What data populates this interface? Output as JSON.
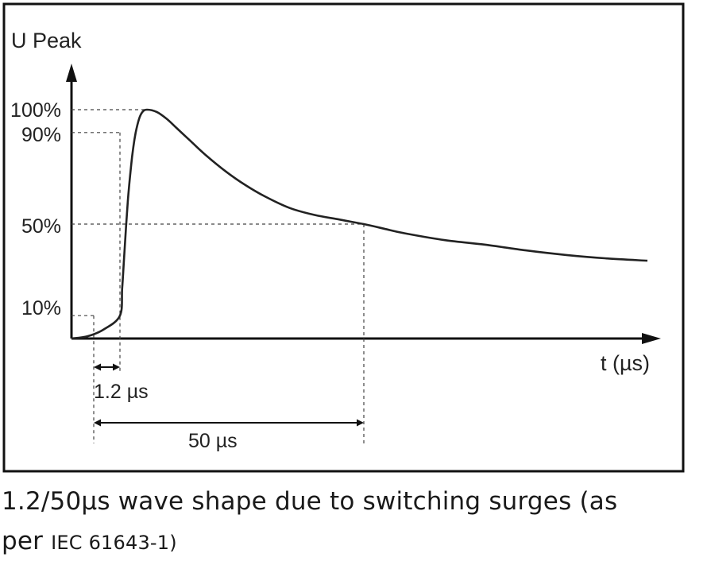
{
  "chart_data": {
    "type": "line",
    "title": "",
    "ylabel": "U Peak",
    "xlabel": "t (µs)",
    "y_ticks": [
      {
        "value": 100,
        "label": "100%"
      },
      {
        "value": 90,
        "label": "90%"
      },
      {
        "value": 50,
        "label": "50%"
      },
      {
        "value": 10,
        "label": "10%"
      }
    ],
    "series": [
      {
        "x": [
          0,
          0.4,
          0.8,
          1.2,
          1.6,
          2.0,
          2.6,
          3.2,
          3.6,
          4.0,
          4.6,
          5.2,
          6,
          8,
          10,
          12,
          15,
          18,
          22,
          26,
          30,
          35,
          40,
          45,
          50,
          55,
          60,
          70,
          80,
          90,
          100,
          110,
          120
        ],
        "values": [
          0,
          1,
          4,
          10,
          22,
          38,
          60,
          76,
          84,
          90,
          96,
          99,
          100,
          99,
          96,
          92,
          86,
          80,
          73,
          67,
          62,
          57,
          54,
          52,
          50,
          48,
          46,
          43,
          41,
          38.5,
          36.5,
          35,
          34
        ]
      }
    ],
    "annotations": {
      "front_time": {
        "from": 0,
        "to": 1.2,
        "label": "1.2 µs"
      },
      "tail_time": {
        "from": 0,
        "to": 50,
        "label": "50 µs"
      }
    },
    "xlim": [
      0,
      120
    ],
    "ylim": [
      0,
      100
    ]
  },
  "caption": {
    "line1": "1.2/50µs wave shape due to switching surges (as",
    "line2_prefix": "per ",
    "line2_small": "IEC 61643-1)"
  }
}
